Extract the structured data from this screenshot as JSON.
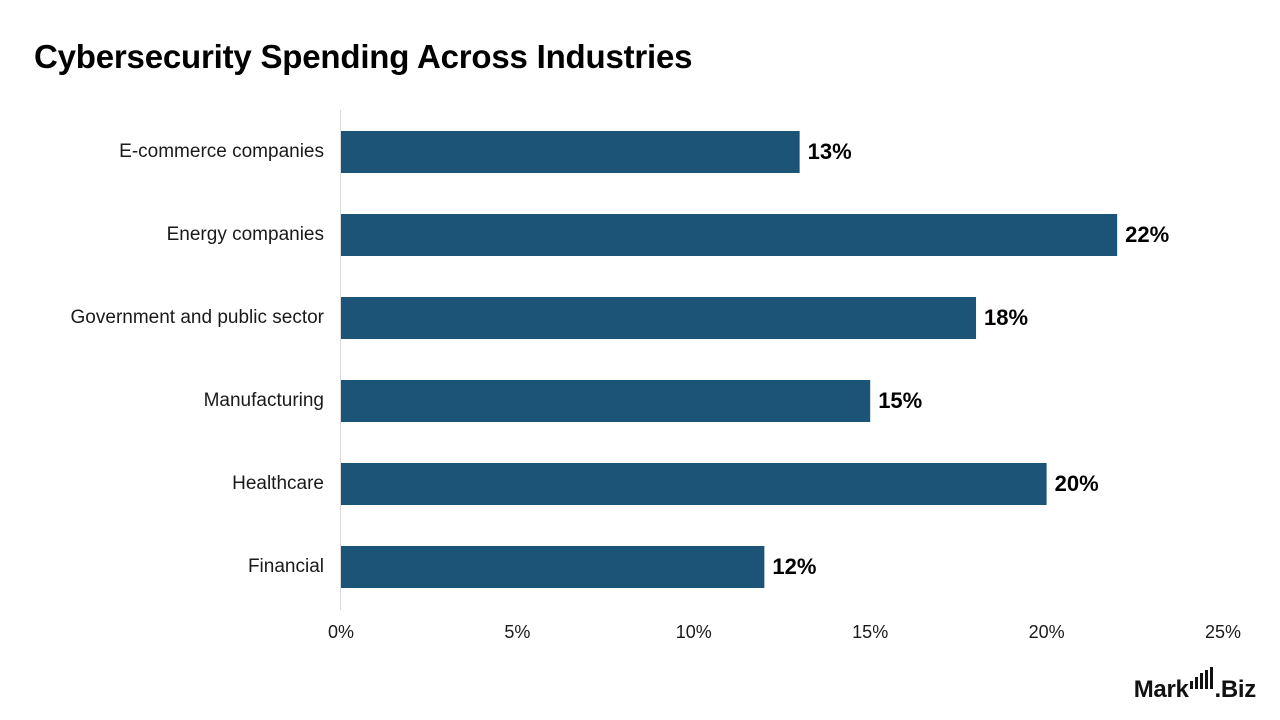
{
  "chart_data": {
    "type": "bar",
    "orientation": "horizontal",
    "title": "Cybersecurity Spending Across Industries",
    "categories": [
      "E-commerce companies",
      "Energy companies",
      "Government and public sector",
      "Manufacturing",
      "Healthcare",
      "Financial"
    ],
    "values": [
      13,
      22,
      18,
      15,
      20,
      12
    ],
    "value_labels": [
      "13%",
      "22%",
      "18%",
      "15%",
      "20%",
      "12%"
    ],
    "xlim": [
      0,
      25
    ],
    "x_ticks": [
      0,
      5,
      10,
      15,
      20,
      25
    ],
    "x_tick_labels": [
      "0%",
      "5%",
      "10%",
      "15%",
      "20%",
      "25%"
    ],
    "xlabel": "",
    "ylabel": "",
    "grid": false,
    "bar_color": "#1c5478"
  },
  "brand": {
    "name": "Market.Biz",
    "text": "Market.Biz"
  }
}
